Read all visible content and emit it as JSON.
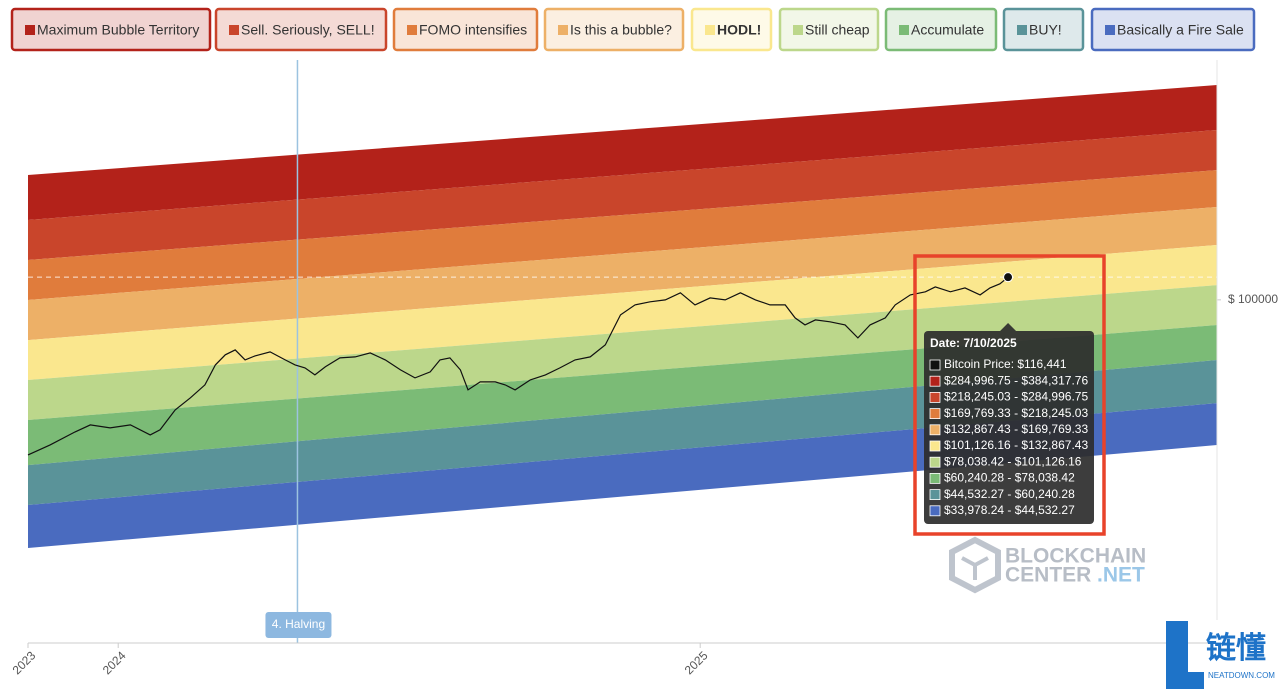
{
  "chart_data": {
    "type": "line",
    "log": true,
    "grid": false,
    "legend_position": "top",
    "xlim": [
      2023.845,
      2025.888
    ],
    "xticks": [
      {
        "value": 2023.845,
        "label": "2023"
      },
      2024,
      2025
    ],
    "ylim": [
      10000,
      500000
    ],
    "yticks": [
      {
        "value": 100000,
        "label": "$ 100000"
      }
    ],
    "bands": [
      {
        "name": "Maximum Bubble Territory",
        "color": "#b3221a"
      },
      {
        "name": "Sell. Seriously, SELL!",
        "color": "#c9452b"
      },
      {
        "name": "FOMO intensifies",
        "color": "#e07c3c"
      },
      {
        "name": "Is this a bubble?",
        "color": "#edb067"
      },
      {
        "name": "HODL!",
        "color": "#fae78e"
      },
      {
        "name": "Still cheap",
        "color": "#bcd78b"
      },
      {
        "name": "Accumulate",
        "color": "#7bbb76"
      },
      {
        "name": "BUY!",
        "color": "#5a9399"
      },
      {
        "name": "Basically a Fire Sale",
        "color": "#4a6bbf"
      }
    ],
    "band_edges": [
      [
        231100,
        422800
      ],
      [
        170900,
        312600
      ],
      [
        130700,
        238900
      ],
      [
        99900,
        186500
      ],
      [
        76350,
        144500
      ],
      [
        58400,
        110400
      ],
      [
        44640,
        84450
      ],
      [
        33000,
        66770
      ],
      [
        25240,
        50000
      ],
      [
        18910,
        37750
      ]
    ],
    "series": [
      {
        "name": "Bitcoin Price",
        "color": "#111111",
        "x": [
          2023.845,
          2023.883,
          2023.926,
          2023.952,
          2023.986,
          2024.021,
          2024.055,
          2024.072,
          2024.098,
          2024.124,
          2024.149,
          2024.167,
          2024.184,
          2024.201,
          2024.218,
          2024.235,
          2024.261,
          2024.287,
          2024.304,
          2024.321,
          2024.338,
          2024.356,
          2024.381,
          2024.407,
          2024.433,
          2024.459,
          2024.485,
          2024.51,
          2024.536,
          2024.553,
          2024.57,
          2024.588,
          2024.601,
          2024.622,
          2024.648,
          2024.665,
          2024.682,
          2024.708,
          2024.734,
          2024.759,
          2024.785,
          2024.811,
          2024.837,
          2024.863,
          2024.888,
          2024.914,
          2024.94,
          2024.966,
          2024.991,
          2025.017,
          2025.043,
          2025.069,
          2025.095,
          2025.12,
          2025.146,
          2025.163,
          2025.18,
          2025.198,
          2025.223,
          2025.249,
          2025.271,
          2025.292,
          2025.318,
          2025.335,
          2025.361,
          2025.387,
          2025.404,
          2025.43,
          2025.455,
          2025.481,
          2025.498,
          2025.515,
          2025.529
        ],
        "values": [
          35340,
          37790,
          41240,
          43220,
          42360,
          43220,
          40410,
          41800,
          47800,
          51810,
          56530,
          64650,
          69140,
          71490,
          66850,
          68670,
          70540,
          66850,
          64650,
          63360,
          60450,
          63790,
          67760,
          68210,
          70070,
          66850,
          62510,
          59250,
          61680,
          66850,
          67760,
          62510,
          54660,
          57680,
          57680,
          56530,
          54660,
          58450,
          60450,
          63360,
          66850,
          68210,
          73930,
          90420,
          96700,
          98670,
          100000,
          104810,
          96700,
          101350,
          100000,
          104810,
          100000,
          96700,
          96700,
          88620,
          84550,
          87440,
          86280,
          84550,
          77490,
          84550,
          88620,
          96700,
          103410,
          105520,
          109110,
          105520,
          108380,
          103410,
          108380,
          111340,
          116441
        ]
      }
    ],
    "halving": {
      "x": 2024.308,
      "label": "4. Halving"
    },
    "tooltip": {
      "title": "Date: 7/10/2025",
      "rows": [
        "Bitcoin Price: $116,441",
        "$284,996.75 - $384,317.76",
        "$218,245.03 - $284,996.75",
        "$169,769.33 - $218,245.03",
        "$132,867.43 - $169,769.33",
        "$101,126.16 - $132,867.43",
        "$78,038.42 - $101,126.16",
        "$60,240.28 - $78,038.42",
        "$44,532.27 - $60,240.28",
        "$33,978.24 - $44,532.27"
      ]
    },
    "watermarks": {
      "brand_line1": "BLOCKCHAIN",
      "brand_line2": "CENTER",
      "brand_line3": ".NET",
      "corner_title": "链懂",
      "corner_site": "NEATDOWN.COM"
    }
  }
}
